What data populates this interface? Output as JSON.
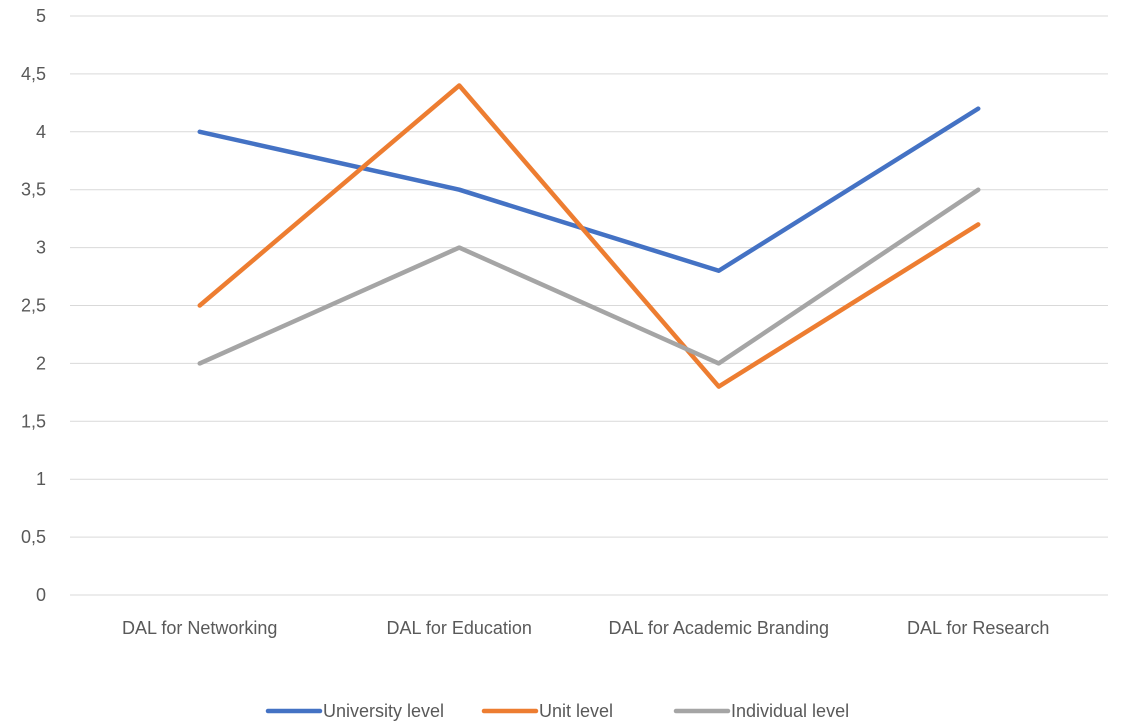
{
  "chart_data": {
    "type": "line",
    "title": "",
    "xlabel": "",
    "ylabel": "",
    "categories": [
      "DAL for Networking",
      "DAL for Education",
      "DAL for Academic Branding",
      "DAL for Research"
    ],
    "ylim": [
      0,
      5
    ],
    "y_ticks": [
      "0",
      "0,5",
      "1",
      "1,5",
      "2",
      "2,5",
      "3",
      "3,5",
      "4",
      "4,5",
      "5"
    ],
    "y_tick_values": [
      0,
      0.5,
      1,
      1.5,
      2,
      2.5,
      3,
      3.5,
      4,
      4.5,
      5
    ],
    "grid": true,
    "legend_position": "bottom",
    "series": [
      {
        "name": "University level",
        "color": "#4472C4",
        "values": [
          4.0,
          3.5,
          2.8,
          4.2
        ]
      },
      {
        "name": "Unit level",
        "color": "#ED7D31",
        "values": [
          2.5,
          4.4,
          1.8,
          3.2
        ]
      },
      {
        "name": "Individual level",
        "color": "#A5A5A5",
        "values": [
          2.0,
          3.0,
          2.0,
          3.5
        ]
      }
    ],
    "gridline_color": "#D9D9D9"
  }
}
